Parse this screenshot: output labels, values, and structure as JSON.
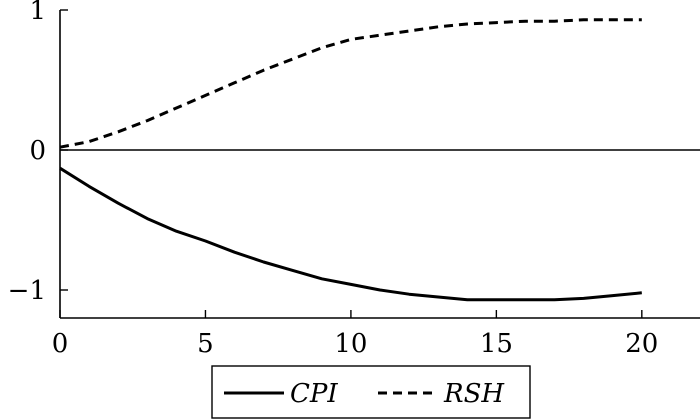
{
  "chart_data": {
    "type": "line",
    "title": "",
    "xlabel": "",
    "ylabel": "",
    "xlim": [
      0,
      22
    ],
    "ylim": [
      -1.2,
      1.0
    ],
    "grid": false,
    "legend_position": "bottom-center",
    "x_ticks": [
      0,
      5,
      10,
      15,
      20
    ],
    "x_tick_labels": [
      "0",
      "5",
      "10",
      "15",
      "20"
    ],
    "y_ticks": [
      1,
      0,
      -1
    ],
    "y_tick_labels": [
      "1",
      "0",
      "−1"
    ],
    "reference_lines": [
      {
        "axis": "y",
        "value": 0
      }
    ],
    "series": [
      {
        "name": "CPI",
        "style": "solid",
        "color": "#000000",
        "x": [
          0,
          1,
          2,
          3,
          4,
          5,
          6,
          7,
          8,
          9,
          10,
          11,
          12,
          13,
          14,
          15,
          16,
          17,
          18,
          19,
          20
        ],
        "values": [
          -0.13,
          -0.26,
          -0.38,
          -0.49,
          -0.58,
          -0.65,
          -0.73,
          -0.8,
          -0.86,
          -0.92,
          -0.96,
          -1.0,
          -1.03,
          -1.05,
          -1.07,
          -1.07,
          -1.07,
          -1.07,
          -1.06,
          -1.04,
          -1.02
        ]
      },
      {
        "name": "RSH",
        "style": "dashed",
        "color": "#000000",
        "x": [
          0,
          1,
          2,
          3,
          4,
          5,
          6,
          7,
          8,
          9,
          10,
          11,
          12,
          13,
          14,
          15,
          16,
          17,
          18,
          19,
          20
        ],
        "values": [
          0.02,
          0.06,
          0.13,
          0.21,
          0.3,
          0.39,
          0.48,
          0.57,
          0.65,
          0.73,
          0.79,
          0.82,
          0.85,
          0.88,
          0.9,
          0.91,
          0.92,
          0.92,
          0.93,
          0.93,
          0.93
        ]
      }
    ]
  }
}
